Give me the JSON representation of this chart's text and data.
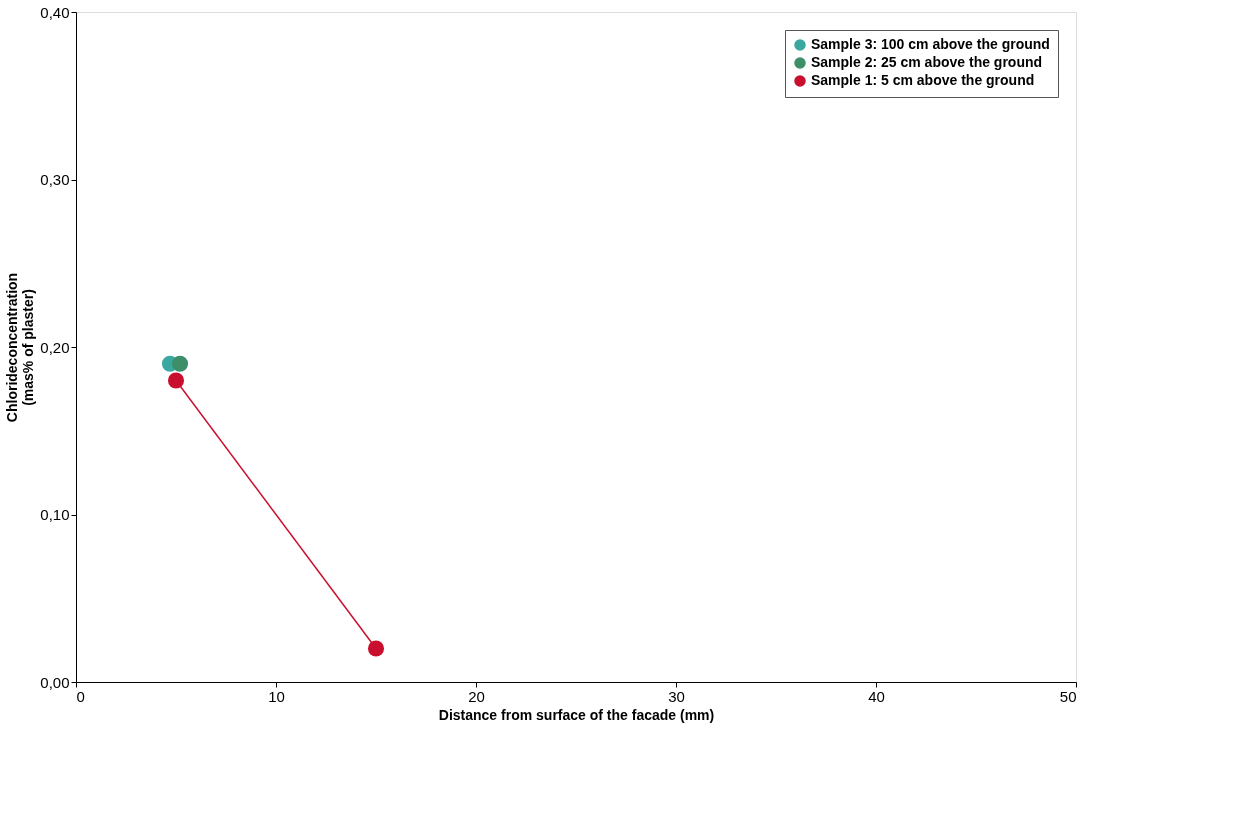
{
  "chart_data": {
    "type": "scatter",
    "xlabel": "Distance from surface of the facade (mm)",
    "ylabel": "Chlorideconcentration\n(mas% of plaster)",
    "series": [
      {
        "name": "Sample 3: 100 cm above the ground",
        "color": "#3aa8a0",
        "x": [
          4.7
        ],
        "values": [
          0.19
        ]
      },
      {
        "name": "Sample 2: 25 cm above the ground",
        "color": "#3d8f6a",
        "x": [
          5.2
        ],
        "values": [
          0.19
        ]
      },
      {
        "name": "Sample 1: 5 cm above the ground",
        "type": "line",
        "color": "#c8102e",
        "x": [
          5,
          15
        ],
        "values": [
          0.18,
          0.02
        ]
      }
    ],
    "xlim": [
      0,
      50
    ],
    "xticks": [
      0,
      10,
      20,
      30,
      40,
      50
    ],
    "ylim": [
      0,
      0.4
    ],
    "yticks": [
      {
        "value": 0,
        "label": "0,00"
      },
      {
        "value": 0.1,
        "label": "0,10"
      },
      {
        "value": 0.2,
        "label": "0,20"
      },
      {
        "value": 0.3,
        "label": "0,30"
      },
      {
        "value": 0.4,
        "label": "0,40"
      }
    ],
    "grid": false,
    "legend": "top right",
    "marker": "circle"
  }
}
